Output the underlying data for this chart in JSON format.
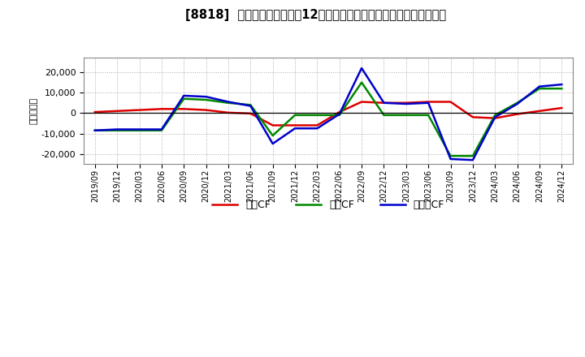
{
  "title": "[8818]  キャッシュフローの12か月移動合計の対前年同期増減額の推移",
  "ylabel": "（百万円）",
  "background_color": "#ffffff",
  "plot_bg_color": "#ffffff",
  "grid_color": "#aaaaaa",
  "dates": [
    "2019/09",
    "2019/12",
    "2020/03",
    "2020/06",
    "2020/09",
    "2020/12",
    "2021/03",
    "2021/06",
    "2021/09",
    "2021/12",
    "2022/03",
    "2022/06",
    "2022/09",
    "2022/12",
    "2023/03",
    "2023/06",
    "2023/09",
    "2023/12",
    "2024/03",
    "2024/06",
    "2024/09",
    "2024/12"
  ],
  "operating_cf": [
    500,
    1000,
    1500,
    2000,
    2000,
    1500,
    200,
    -200,
    -6000,
    -6000,
    -6000,
    500,
    5500,
    5000,
    5000,
    5500,
    5500,
    -2000,
    -2500,
    -500,
    1000,
    2500
  ],
  "investing_cf": [
    -8500,
    -8500,
    -8500,
    -8500,
    7000,
    6500,
    5000,
    4000,
    -11000,
    -1000,
    -1000,
    -1000,
    15000,
    -1000,
    -1000,
    -1000,
    -21000,
    -21000,
    -1000,
    5000,
    12000,
    12000
  ],
  "free_cf": [
    -8500,
    -8000,
    -8000,
    -8000,
    8500,
    8000,
    5500,
    3500,
    -15000,
    -7500,
    -7500,
    -500,
    22000,
    5000,
    4500,
    5000,
    -22500,
    -23000,
    -2000,
    4500,
    13000,
    14000
  ],
  "operating_color": "#dd0000",
  "investing_color": "#008800",
  "free_color": "#0000cc",
  "line_width": 1.8,
  "ylim": [
    -25000,
    27000
  ],
  "yticks": [
    -20000,
    -10000,
    0,
    10000,
    20000
  ],
  "legend_labels": [
    "営業CF",
    "投資CF",
    "フリーCF"
  ]
}
